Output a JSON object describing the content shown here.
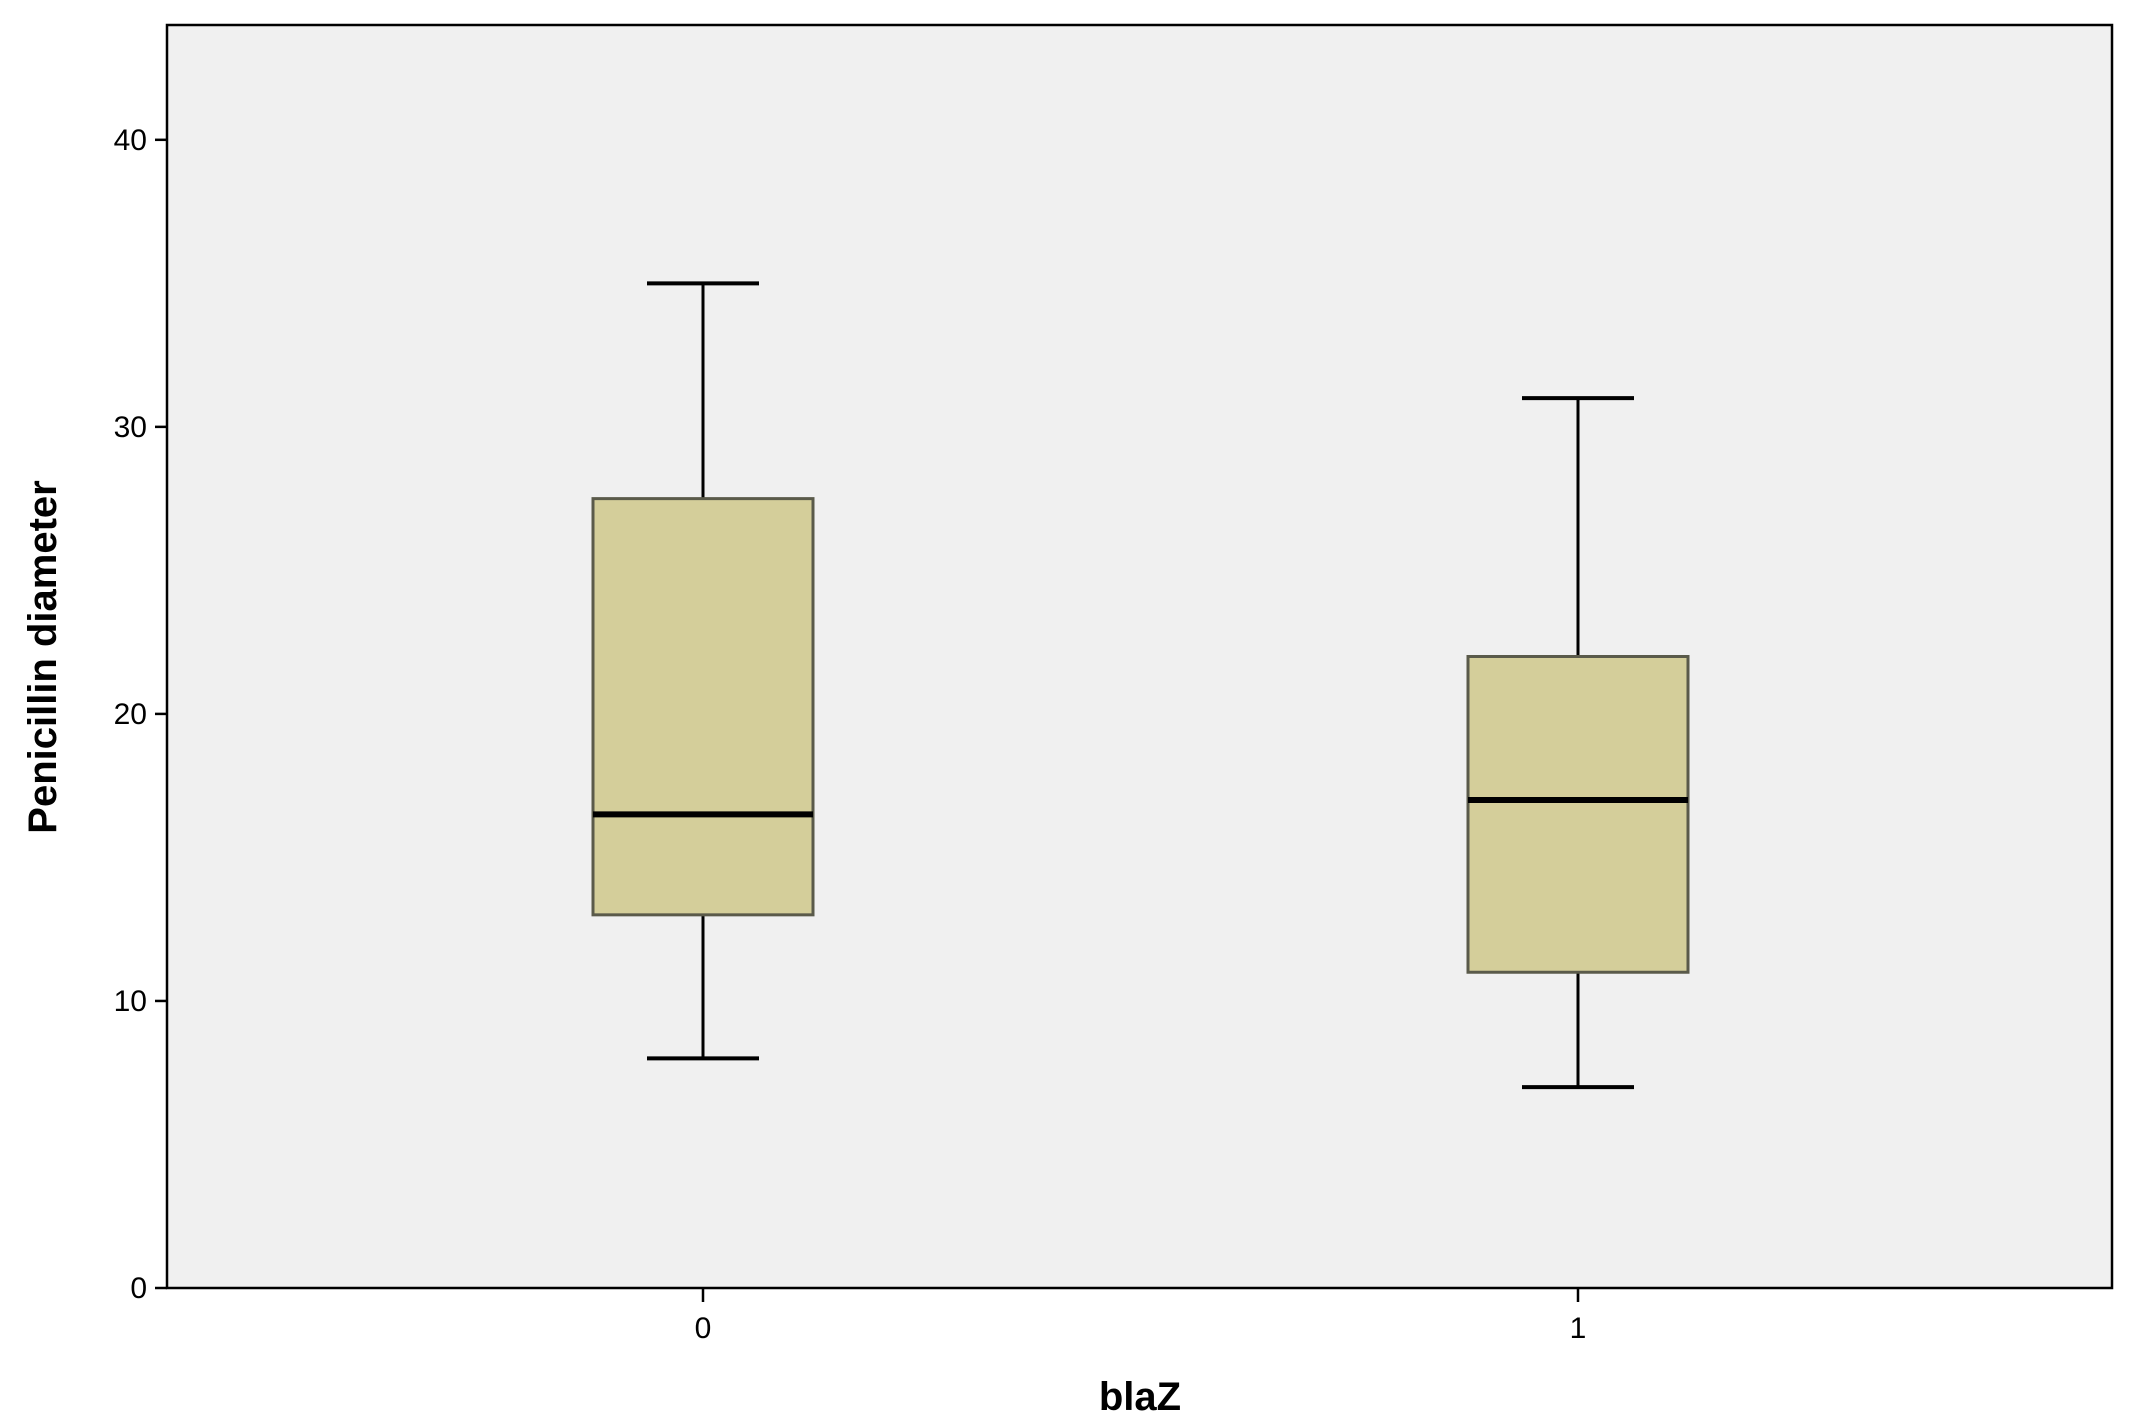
{
  "chart_data": {
    "type": "boxplot",
    "title": "",
    "xlabel": "blaZ",
    "ylabel": "Penicillin diameter",
    "categories": [
      "0",
      "1"
    ],
    "ylim": [
      0,
      44
    ],
    "yticks": [
      0,
      10,
      20,
      30,
      40
    ],
    "ytick_labels": [
      "0",
      "10",
      "20",
      "30",
      "40"
    ],
    "grid": false,
    "legend": "none",
    "boxes": [
      {
        "category": "0",
        "whisker_low": 8,
        "q1": 13,
        "median": 16.5,
        "q3": 27.5,
        "whisker_high": 35
      },
      {
        "category": "1",
        "whisker_low": 7,
        "q1": 11,
        "median": 17,
        "q3": 22,
        "whisker_high": 31
      }
    ],
    "colors": {
      "plot_background": "#f0f0f0",
      "box_fill": "#d4ce9a",
      "box_stroke": "#5a5a4a",
      "line": "#000000"
    }
  }
}
